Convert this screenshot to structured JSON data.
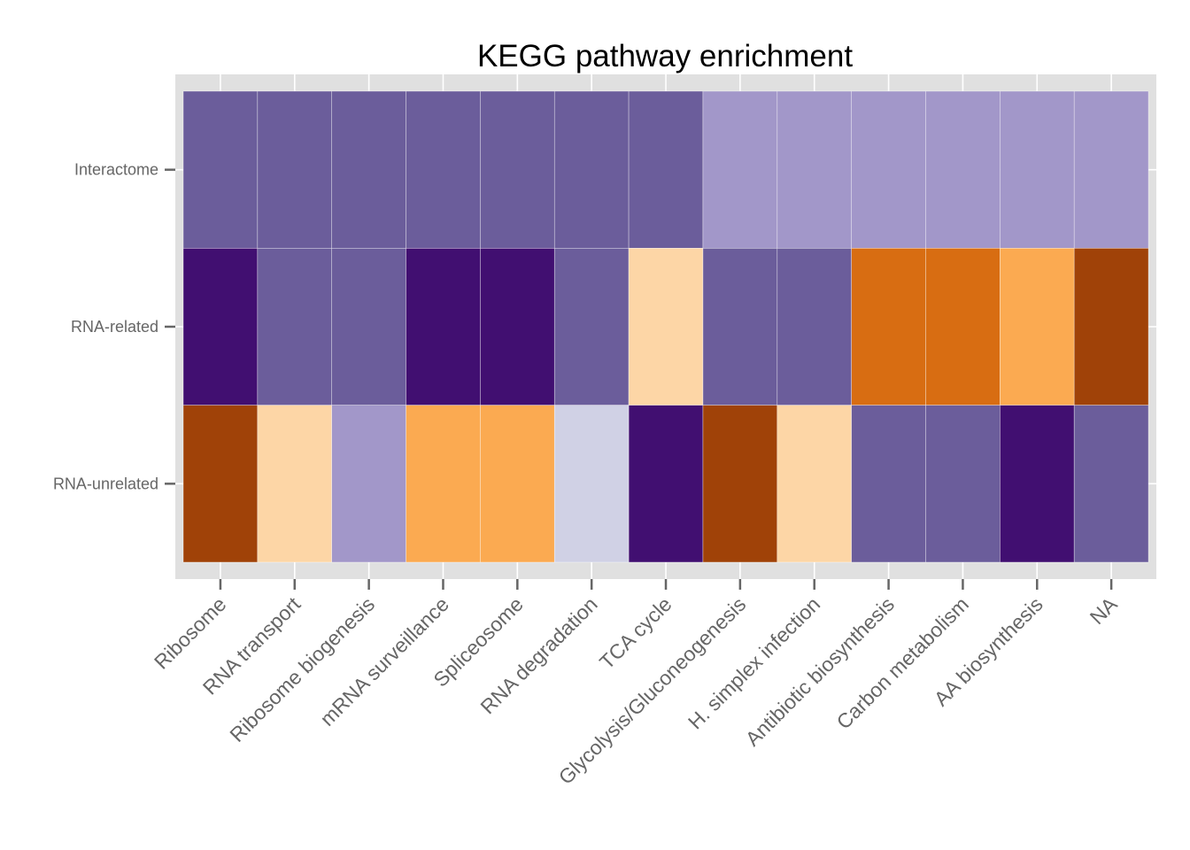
{
  "chart_data": {
    "type": "heatmap",
    "title": "KEGG pathway enrichment",
    "xlabel": "",
    "ylabel": "",
    "x_categories": [
      "Ribosome",
      "RNA transport",
      "Ribosome biogenesis",
      "mRNA surveillance",
      "Spliceosome",
      "RNA degradation",
      "TCA cycle",
      "Glycolysis/Gluconeogenesis",
      "H. simplex infection",
      "Antibiotic biosynthesis",
      "Carbon metabolism",
      "AA biosynthesis",
      "NA"
    ],
    "y_categories": [
      "Interactome",
      "RNA-related",
      "RNA-unrelated"
    ],
    "legend": "none",
    "grid": true,
    "palette": {
      "1": "#410f71",
      "2": "#6b5d9b",
      "3": "#a297c9",
      "4": "#d0d1e5",
      "5": "#fdd6a6",
      "6": "#fbaa51",
      "7": "#d86d12",
      "8": "#a04208"
    },
    "values": [
      [
        2,
        2,
        2,
        2,
        2,
        2,
        2,
        3,
        3,
        3,
        3,
        3,
        3
      ],
      [
        1,
        2,
        2,
        1,
        1,
        2,
        5,
        2,
        2,
        7,
        7,
        6,
        8
      ],
      [
        8,
        5,
        3,
        6,
        6,
        4,
        1,
        8,
        5,
        2,
        2,
        1,
        2
      ]
    ],
    "colors": {
      "panel_background": "#e0e0e0",
      "gridline": "#ffffff",
      "cell_border": "#ffffff",
      "tick_text": "#666666",
      "title_text": "#000000"
    }
  }
}
